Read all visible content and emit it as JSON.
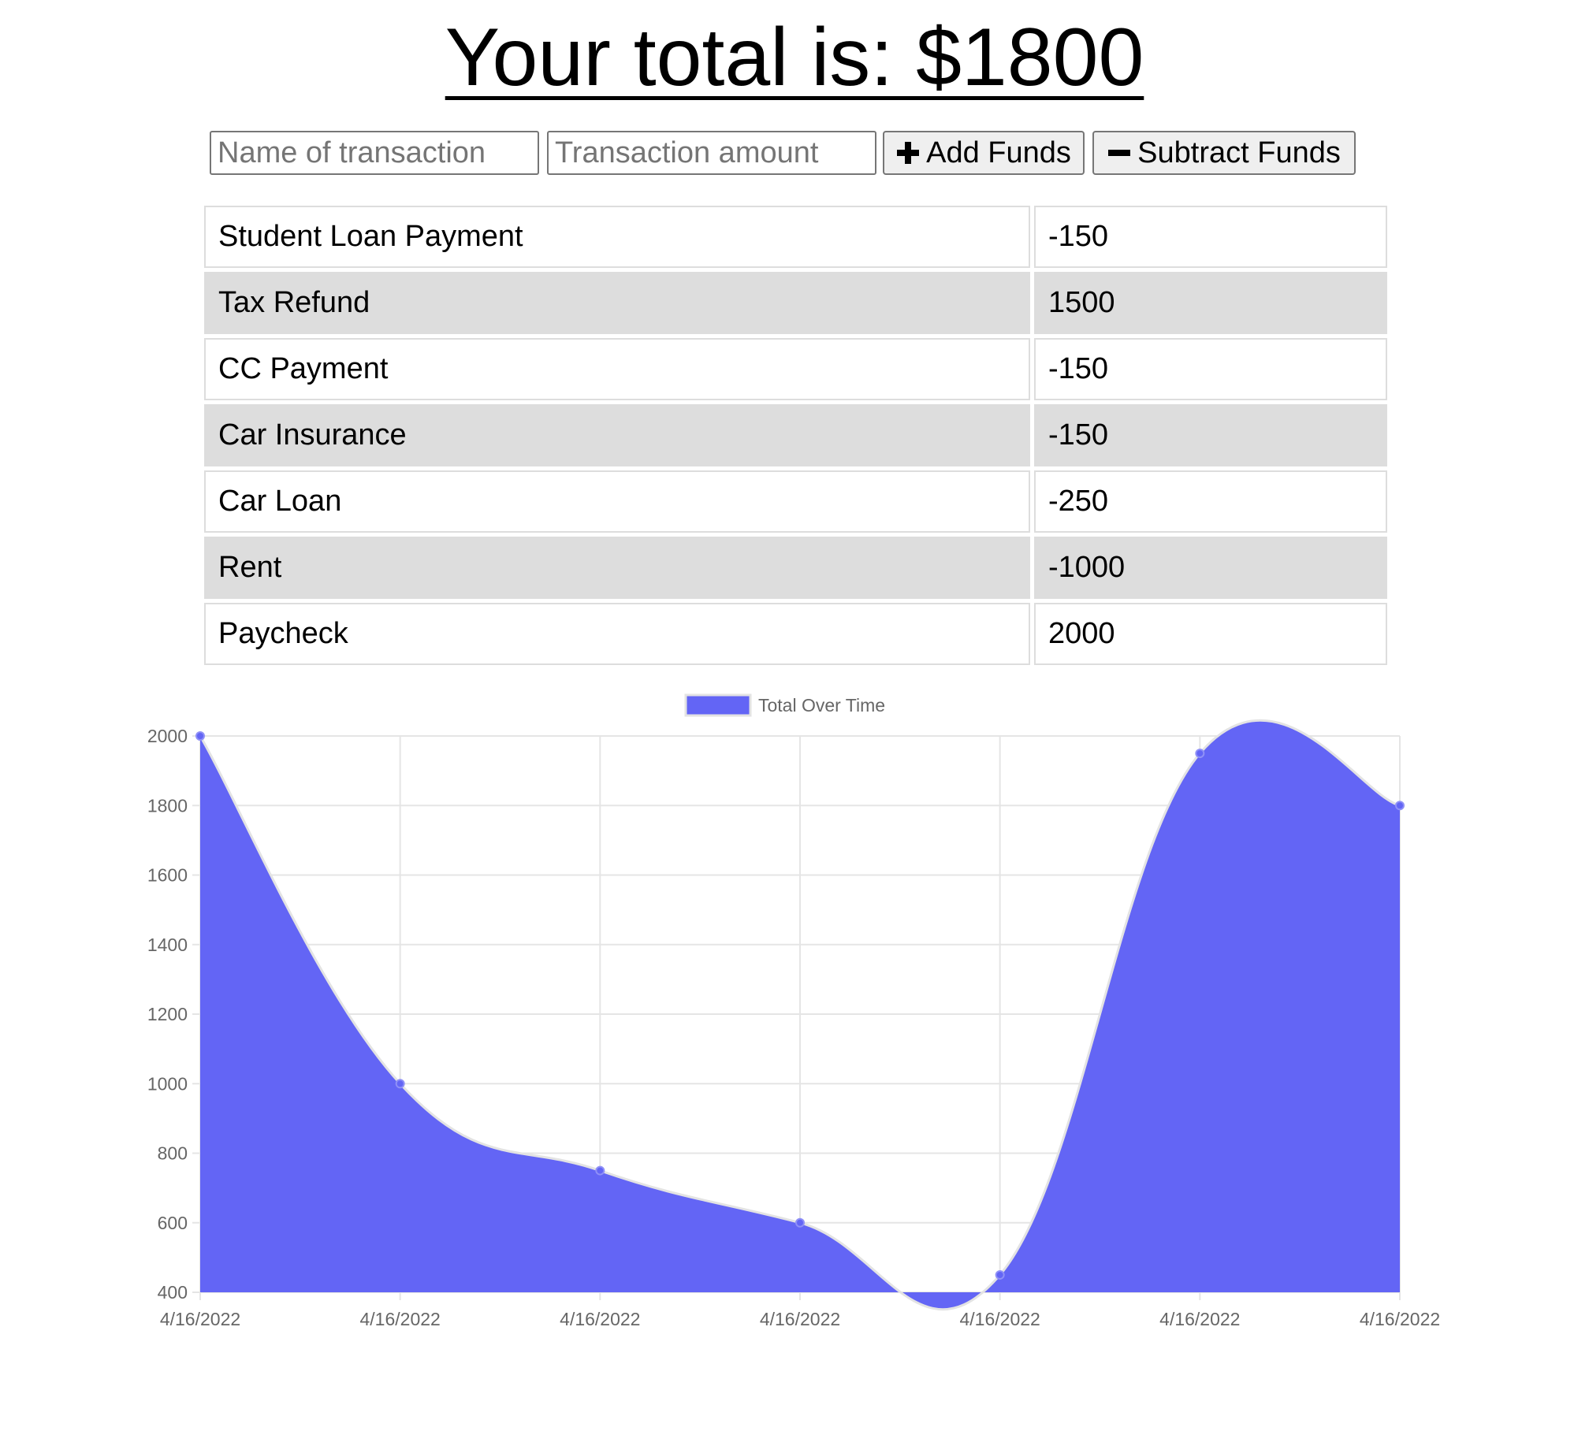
{
  "header": {
    "total_label": "Your total is: $1800"
  },
  "form": {
    "name_placeholder": "Name of transaction",
    "amount_placeholder": "Transaction amount",
    "add_label": "Add Funds",
    "subtract_label": "Subtract Funds"
  },
  "transactions": [
    {
      "name": "Student Loan Payment",
      "amount": "-150"
    },
    {
      "name": "Tax Refund",
      "amount": "1500"
    },
    {
      "name": "CC Payment",
      "amount": "-150"
    },
    {
      "name": "Car Insurance",
      "amount": "-150"
    },
    {
      "name": "Car Loan",
      "amount": "-250"
    },
    {
      "name": "Rent",
      "amount": "-1000"
    },
    {
      "name": "Paycheck",
      "amount": "2000"
    }
  ],
  "chart_data": {
    "type": "area",
    "legend": "Total Over Time",
    "legend_position": "top",
    "x": [
      "4/16/2022",
      "4/16/2022",
      "4/16/2022",
      "4/16/2022",
      "4/16/2022",
      "4/16/2022",
      "4/16/2022"
    ],
    "series": [
      {
        "name": "Total Over Time",
        "values": [
          2000,
          1000,
          750,
          600,
          450,
          1950,
          1800
        ],
        "color": "#6365f5"
      }
    ],
    "y_ticks": [
      2000,
      1800,
      1600,
      1400,
      1200,
      1000,
      800,
      600,
      400
    ],
    "ylim": [
      400,
      2000
    ],
    "grid": true
  }
}
